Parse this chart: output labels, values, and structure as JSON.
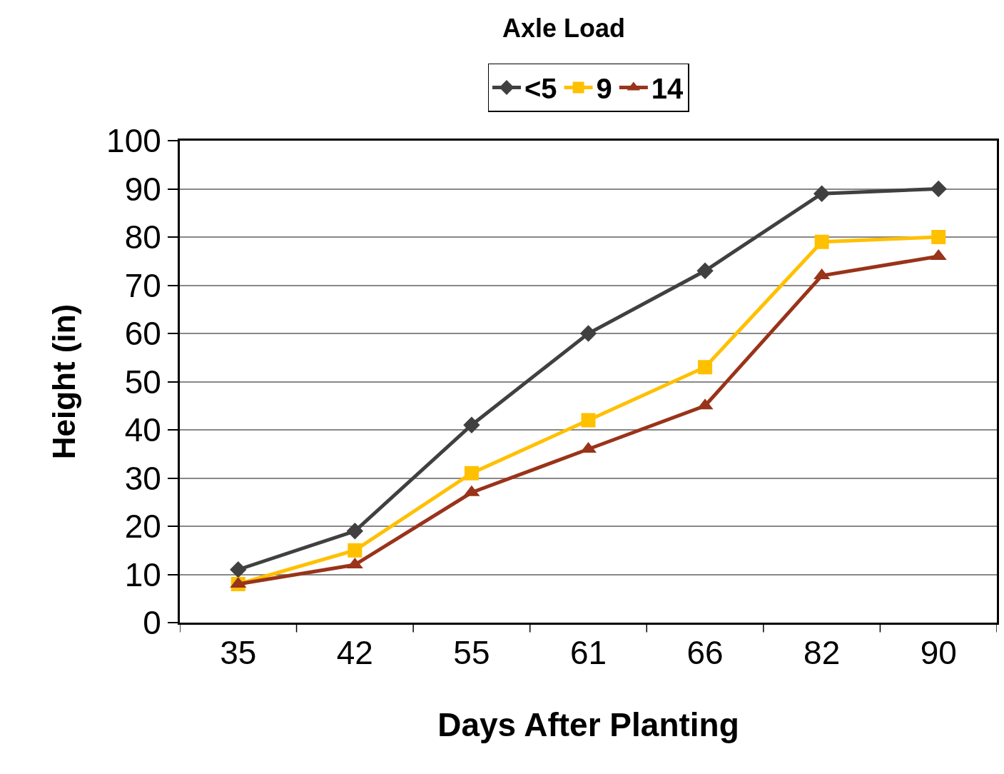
{
  "chart_data": {
    "type": "line",
    "legend_title": "Axle Load",
    "xlabel": "Days After Planting",
    "ylabel": "Height (in)",
    "categories": [
      "35",
      "42",
      "55",
      "61",
      "66",
      "82",
      "90"
    ],
    "series": [
      {
        "name": "<5",
        "color": "#404040",
        "marker": "diamond",
        "values": [
          11,
          19,
          41,
          60,
          73,
          89,
          90
        ]
      },
      {
        "name": "9",
        "color": "#ffc000",
        "marker": "square",
        "values": [
          8,
          15,
          31,
          42,
          53,
          79,
          80
        ]
      },
      {
        "name": "14",
        "color": "#99331a",
        "marker": "triangle",
        "values": [
          8,
          12,
          27,
          36,
          45,
          72,
          76
        ]
      }
    ],
    "ylim": [
      0,
      100
    ],
    "yticks": [
      0,
      10,
      20,
      30,
      40,
      50,
      60,
      70,
      80,
      90,
      100
    ],
    "grid": "y",
    "legend": "top"
  }
}
